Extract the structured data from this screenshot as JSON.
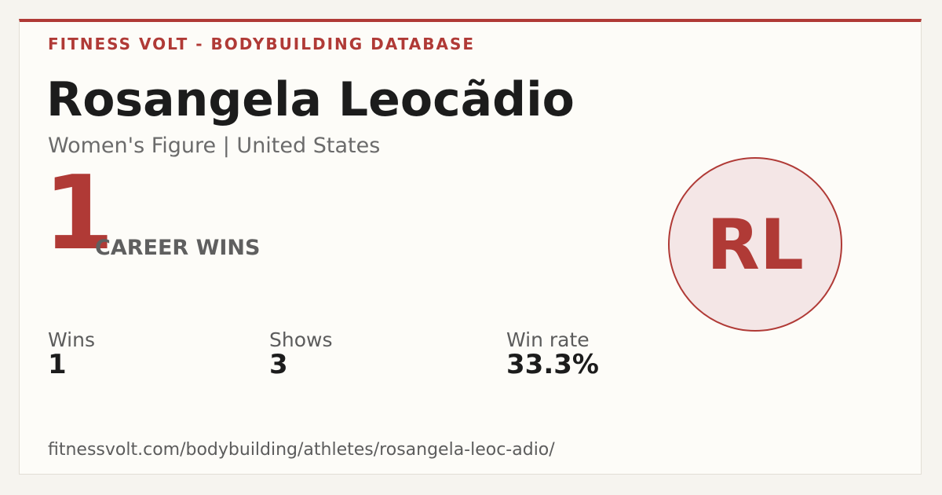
{
  "header": {
    "site": "FITNESS VOLT - BODYBUILDING DATABASE"
  },
  "athlete": {
    "name": "Rosangela Leocãdio",
    "subtitle": "Women's Figure | United States",
    "initials": "RL"
  },
  "career": {
    "wins": "1",
    "label": "CAREER WINS"
  },
  "stats": [
    {
      "label": "Wins",
      "value": "1"
    },
    {
      "label": "Shows",
      "value": "3"
    },
    {
      "label": "Win rate",
      "value": "33.3%"
    }
  ],
  "footer": {
    "url": "fitnessvolt.com/bodybuilding/athletes/rosangela-leoc-adio/"
  }
}
